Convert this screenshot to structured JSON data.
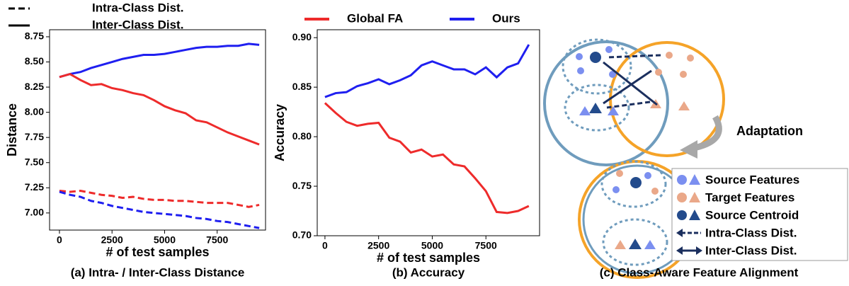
{
  "chart_data": [
    {
      "type": "line",
      "caption": "(a) Intra- / Inter-Class Distance",
      "xlabel": "# of test samples",
      "ylabel": "Distance",
      "x": [
        0,
        500,
        1000,
        1500,
        2000,
        2500,
        3000,
        3500,
        4000,
        4500,
        5000,
        5500,
        6000,
        6500,
        7000,
        7500,
        8000,
        8500,
        9000,
        9500
      ],
      "xlim": [
        -470,
        9800
      ],
      "xticks": [
        0,
        2500,
        5000,
        7500
      ],
      "ylim": [
        6.83,
        8.82
      ],
      "yticks": [
        {
          "value": 7.0,
          "label": "7.00"
        },
        7.25,
        {
          "value": 7.5,
          "label": "7.50"
        },
        7.75,
        {
          "value": 8.0,
          "label": "8.00"
        },
        8.25,
        {
          "value": 8.5,
          "label": "8.50"
        },
        8.75
      ],
      "legend": [
        {
          "label": "Intra-Class Dist.",
          "dash": true
        },
        {
          "label": "Inter-Class Dist.",
          "dash": false
        }
      ],
      "series": [
        {
          "color": "#1f1ff0",
          "dash": false,
          "values": [
            8.35,
            8.38,
            8.4,
            8.44,
            8.47,
            8.5,
            8.53,
            8.55,
            8.57,
            8.57,
            8.58,
            8.6,
            8.62,
            8.64,
            8.65,
            8.65,
            8.66,
            8.66,
            8.68,
            8.67
          ]
        },
        {
          "color": "#ee2b2b",
          "dash": false,
          "values": [
            8.35,
            8.38,
            8.32,
            8.27,
            8.28,
            8.24,
            8.22,
            8.19,
            8.17,
            8.12,
            8.06,
            8.02,
            7.99,
            7.92,
            7.9,
            7.85,
            7.8,
            7.76,
            7.72,
            7.68
          ]
        },
        {
          "color": "#ee2b2b",
          "dash": true,
          "values": [
            7.22,
            7.21,
            7.22,
            7.2,
            7.18,
            7.17,
            7.15,
            7.16,
            7.14,
            7.13,
            7.13,
            7.12,
            7.12,
            7.11,
            7.1,
            7.1,
            7.1,
            7.08,
            7.06,
            7.08
          ]
        },
        {
          "color": "#1f1ff0",
          "dash": true,
          "values": [
            7.21,
            7.18,
            7.16,
            7.12,
            7.1,
            7.07,
            7.05,
            7.03,
            7.01,
            7.0,
            6.99,
            6.98,
            6.97,
            6.95,
            6.94,
            6.92,
            6.91,
            6.89,
            6.87,
            6.85
          ]
        }
      ]
    },
    {
      "type": "line",
      "caption": "(b) Accuracy",
      "xlabel": "# of test samples",
      "ylabel": "Accuracy",
      "x": [
        0,
        500,
        1000,
        1500,
        2000,
        2500,
        3000,
        3500,
        4000,
        4500,
        5000,
        5500,
        6000,
        6500,
        7000,
        7500,
        8000,
        8500,
        9000,
        9500
      ],
      "xlim": [
        -360,
        10000
      ],
      "xticks": [
        0,
        2500,
        5000,
        7500
      ],
      "ylim": [
        0.7,
        0.908
      ],
      "yticks": [
        {
          "value": 0.7,
          "label": "0.70"
        },
        0.75,
        {
          "value": 0.8,
          "label": "0.80"
        },
        0.85,
        {
          "value": 0.9,
          "label": "0.90"
        }
      ],
      "series": [
        {
          "name": "Global FA",
          "color": "#ee2b2b",
          "values": [
            0.834,
            0.824,
            0.815,
            0.811,
            0.813,
            0.814,
            0.799,
            0.795,
            0.784,
            0.787,
            0.78,
            0.782,
            0.772,
            0.77,
            0.758,
            0.745,
            0.724,
            0.723,
            0.725,
            0.73
          ]
        },
        {
          "name": "Ours",
          "color": "#1f1ff0",
          "values": [
            0.84,
            0.844,
            0.845,
            0.851,
            0.854,
            0.858,
            0.853,
            0.857,
            0.862,
            0.872,
            0.876,
            0.872,
            0.868,
            0.868,
            0.863,
            0.87,
            0.86,
            0.87,
            0.874,
            0.893
          ]
        }
      ]
    }
  ],
  "diagram": {
    "adaptation": "Adaptation",
    "legend": [
      "Source Features",
      "Target Features",
      "Source Centroid",
      "Intra-Class Dist.",
      "Inter-Class Dist."
    ],
    "caption": "(c) Class-Aware Feature Alignment"
  }
}
